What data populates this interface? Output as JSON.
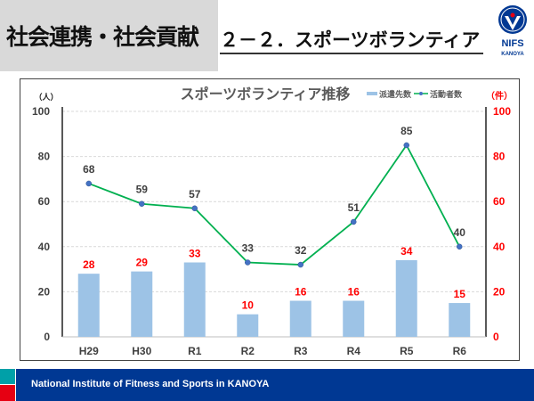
{
  "header": {
    "section_title": "社会連携・社会貢献",
    "page_title": "２－２．スポーツボランティア",
    "logo_text": "NIFS",
    "logo_sub": "KANOYA",
    "logo_badge": "KANOYA"
  },
  "footer": {
    "text": "National Institute of Fitness and Sports in KANOYA"
  },
  "chart_data": {
    "type": "bar+line",
    "title": "スポーツボランティア推移",
    "categories": [
      "H29",
      "H30",
      "R1",
      "R2",
      "R3",
      "R4",
      "R5",
      "R6"
    ],
    "y_left": {
      "unit": "（人）",
      "range": [
        0,
        100
      ],
      "ticks": [
        0,
        20,
        40,
        60,
        80,
        100
      ]
    },
    "y_right": {
      "unit": "（件）",
      "range": [
        0,
        100
      ],
      "ticks": [
        0,
        20,
        40,
        60,
        80,
        100
      ],
      "color": "#ff0000"
    },
    "series": [
      {
        "name": "派遣先数",
        "type": "bar",
        "axis": "right",
        "color": "#9dc3e6",
        "label_color": "#ff0000",
        "values": [
          28,
          29,
          33,
          10,
          16,
          16,
          34,
          15
        ]
      },
      {
        "name": "活動者数",
        "type": "line",
        "axis": "left",
        "color": "#00b050",
        "marker_color": "#4472c4",
        "label_color": "#404040",
        "values": [
          68,
          59,
          57,
          33,
          32,
          51,
          85,
          40
        ]
      }
    ],
    "legend": "top-right",
    "grid": true
  }
}
